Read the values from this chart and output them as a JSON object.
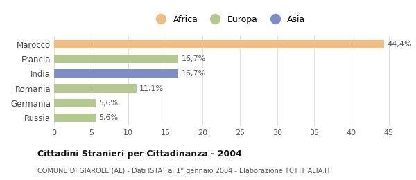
{
  "categories": [
    "Russia",
    "Germania",
    "Romania",
    "India",
    "Francia",
    "Marocco"
  ],
  "values": [
    5.6,
    5.6,
    11.1,
    16.7,
    16.7,
    44.4
  ],
  "labels": [
    "5,6%",
    "5,6%",
    "11,1%",
    "16,7%",
    "16,7%",
    "44,4%"
  ],
  "bar_colors": [
    "#b5c98e",
    "#b5c98e",
    "#b5c98e",
    "#7b8ec8",
    "#b5c98e",
    "#f0be80"
  ],
  "africa_color": "#f0be80",
  "europa_color": "#b5c98e",
  "asia_color": "#7b8ec8",
  "legend_labels": [
    "Africa",
    "Europa",
    "Asia"
  ],
  "title": "Cittadini Stranieri per Cittadinanza - 2004",
  "subtitle": "COMUNE DI GIAROLE (AL) - Dati ISTAT al 1° gennaio 2004 - Elaborazione TUTTITALIA.IT",
  "xlim": [
    0,
    47
  ],
  "xticks": [
    0,
    5,
    10,
    15,
    20,
    25,
    30,
    35,
    40,
    45
  ],
  "background_color": "#ffffff",
  "plot_bg_color": "#ffffff",
  "grid_color": "#e0e0e0",
  "label_color": "#555555",
  "ytick_color": "#444444"
}
